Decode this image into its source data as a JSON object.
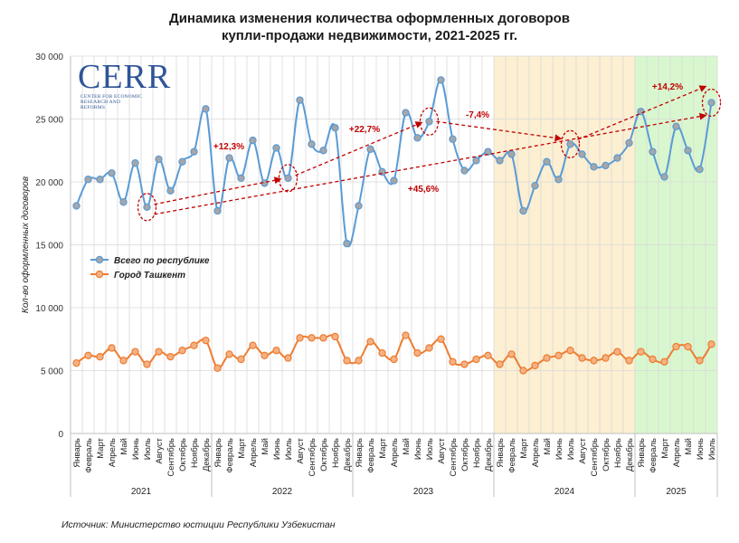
{
  "title_line1": "Динамика изменения количества оформленных договоров",
  "title_line2": "купли-продажи недвижимости, 2021-2025 гг.",
  "source": "Источник: Министерство юстиции Республики Узбекистан",
  "logo": {
    "word": "CERR",
    "sub": "CENTER FOR ECONOMIC RESEARCH AND REFORMS"
  },
  "chart_data": {
    "type": "line",
    "ylabel": "Кол-во оформленных договоров",
    "ylim": [
      0,
      30000
    ],
    "yticks": [
      "0",
      "5 000",
      "10 000",
      "15 000",
      "20 000",
      "25 000",
      "30 000"
    ],
    "grid": true,
    "legend_position": "middle-left",
    "years": [
      "2021",
      "2022",
      "2023",
      "2024",
      "2025"
    ],
    "months": [
      "Январь",
      "Февраль",
      "Март",
      "Апрель",
      "Май",
      "Июнь",
      "Июль",
      "Август",
      "Сентябрь",
      "Октябрь",
      "Ноябрь",
      "Декабрь"
    ],
    "year_2025_months": 7,
    "shaded_years": [
      {
        "year": "2024",
        "color": "#fcefd2"
      },
      {
        "year": "2025",
        "color": "#d9f7cf"
      }
    ],
    "series": [
      {
        "name": "Всего по республике",
        "color": "#5b9bd5",
        "values": [
          18100,
          20200,
          20200,
          20700,
          18400,
          21500,
          18000,
          21800,
          19300,
          21600,
          22400,
          25800,
          17700,
          21900,
          20300,
          23300,
          19900,
          22700,
          20300,
          26500,
          23000,
          22500,
          24300,
          15100,
          18100,
          22600,
          20800,
          20100,
          25500,
          23500,
          24800,
          28100,
          23400,
          20900,
          21700,
          22400,
          21700,
          22200,
          17700,
          19700,
          21600,
          20200,
          23000,
          22200,
          21200,
          21300,
          21900,
          23100,
          25600,
          22400,
          20400,
          24400,
          22500,
          21000,
          26300
        ]
      },
      {
        "name": "Город Ташкент",
        "color": "#ed7d31",
        "values": [
          5600,
          6200,
          6100,
          6800,
          5800,
          6500,
          5500,
          6500,
          6100,
          6600,
          7000,
          7400,
          5200,
          6300,
          5900,
          7000,
          6200,
          6600,
          6000,
          7600,
          7600,
          7600,
          7700,
          5800,
          5800,
          7300,
          6400,
          5900,
          7800,
          6400,
          6800,
          7500,
          5700,
          5500,
          5900,
          6200,
          5500,
          6300,
          5000,
          5400,
          6000,
          6200,
          6600,
          6000,
          5800,
          6000,
          6500,
          5800,
          6500,
          5900,
          5700,
          6900,
          6900,
          5800,
          7100
        ]
      }
    ],
    "annotations": [
      {
        "label": "+12,3%",
        "from": 6,
        "to": 18
      },
      {
        "label": "+22,7%",
        "from": 18,
        "to": 30
      },
      {
        "label": "-7,4%",
        "from": 30,
        "to": 42
      },
      {
        "label": "+45,6%",
        "from": 6,
        "to": 54
      },
      {
        "label": "+14,2%",
        "from": 42,
        "to": 54
      }
    ]
  }
}
